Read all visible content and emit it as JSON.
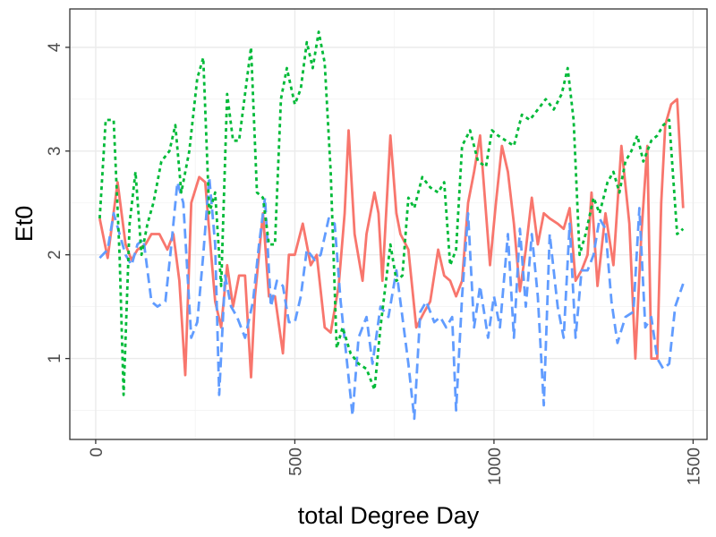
{
  "chart_data": {
    "type": "line",
    "xlabel": "total Degree Day",
    "ylabel": "Et0",
    "xlim": [
      -65,
      1535
    ],
    "ylim": [
      0.22,
      4.37
    ],
    "x_ticks": [
      0,
      500,
      1000,
      1500
    ],
    "x_tick_labels": [
      "0",
      "500",
      "1000",
      "1500"
    ],
    "y_ticks": [
      1,
      2,
      3,
      4
    ],
    "y_tick_labels": [
      "1",
      "2",
      "3",
      "4"
    ],
    "grid": true,
    "legend": "none",
    "series": [
      {
        "color": "#F8766D",
        "dash": "solid",
        "points": [
          [
            10,
            2.35
          ],
          [
            30,
            1.97
          ],
          [
            55,
            2.7
          ],
          [
            75,
            2.1
          ],
          [
            90,
            1.95
          ],
          [
            105,
            2.05
          ],
          [
            125,
            2.1
          ],
          [
            140,
            2.2
          ],
          [
            160,
            2.2
          ],
          [
            180,
            2.05
          ],
          [
            195,
            2.2
          ],
          [
            210,
            1.75
          ],
          [
            225,
            0.84
          ],
          [
            240,
            2.5
          ],
          [
            260,
            2.75
          ],
          [
            275,
            2.7
          ],
          [
            290,
            2.0
          ],
          [
            300,
            1.55
          ],
          [
            315,
            1.3
          ],
          [
            330,
            1.9
          ],
          [
            345,
            1.5
          ],
          [
            360,
            1.8
          ],
          [
            375,
            1.8
          ],
          [
            390,
            0.82
          ],
          [
            400,
            1.6
          ],
          [
            420,
            2.4
          ],
          [
            435,
            1.6
          ],
          [
            450,
            1.6
          ],
          [
            470,
            1.05
          ],
          [
            485,
            2.0
          ],
          [
            500,
            2.0
          ],
          [
            520,
            2.3
          ],
          [
            540,
            1.9
          ],
          [
            555,
            2.0
          ],
          [
            575,
            1.3
          ],
          [
            590,
            1.25
          ],
          [
            610,
            1.7
          ],
          [
            625,
            2.4
          ],
          [
            635,
            3.2
          ],
          [
            650,
            2.2
          ],
          [
            670,
            1.75
          ],
          [
            680,
            2.2
          ],
          [
            700,
            2.6
          ],
          [
            710,
            2.4
          ],
          [
            720,
            1.75
          ],
          [
            740,
            3.15
          ],
          [
            755,
            2.4
          ],
          [
            765,
            2.2
          ],
          [
            785,
            2.05
          ],
          [
            805,
            1.3
          ],
          [
            825,
            1.45
          ],
          [
            840,
            1.55
          ],
          [
            860,
            2.05
          ],
          [
            875,
            1.8
          ],
          [
            890,
            1.75
          ],
          [
            905,
            1.6
          ],
          [
            920,
            1.75
          ],
          [
            935,
            2.5
          ],
          [
            950,
            2.8
          ],
          [
            965,
            3.15
          ],
          [
            990,
            1.9
          ],
          [
            1005,
            2.5
          ],
          [
            1020,
            3.05
          ],
          [
            1035,
            2.8
          ],
          [
            1050,
            2.3
          ],
          [
            1065,
            1.65
          ],
          [
            1080,
            2.05
          ],
          [
            1095,
            2.55
          ],
          [
            1110,
            2.1
          ],
          [
            1125,
            2.4
          ],
          [
            1140,
            2.35
          ],
          [
            1160,
            2.3
          ],
          [
            1175,
            2.25
          ],
          [
            1190,
            2.45
          ],
          [
            1205,
            1.75
          ],
          [
            1220,
            1.85
          ],
          [
            1235,
            2.0
          ],
          [
            1245,
            2.6
          ],
          [
            1260,
            1.7
          ],
          [
            1280,
            2.4
          ],
          [
            1300,
            1.9
          ],
          [
            1320,
            3.05
          ],
          [
            1340,
            2.3
          ],
          [
            1355,
            1.0
          ],
          [
            1370,
            2.2
          ],
          [
            1385,
            3.05
          ],
          [
            1395,
            1.0
          ],
          [
            1410,
            1.0
          ],
          [
            1420,
            2.5
          ],
          [
            1430,
            3.25
          ],
          [
            1445,
            3.45
          ],
          [
            1460,
            3.5
          ],
          [
            1475,
            2.45
          ]
        ]
      },
      {
        "color": "#619CFF",
        "dash": "dashed",
        "points": [
          [
            10,
            1.97
          ],
          [
            30,
            2.05
          ],
          [
            45,
            2.4
          ],
          [
            60,
            2.2
          ],
          [
            75,
            2.0
          ],
          [
            90,
            1.9
          ],
          [
            105,
            2.1
          ],
          [
            120,
            2.15
          ],
          [
            140,
            1.55
          ],
          [
            155,
            1.5
          ],
          [
            175,
            1.55
          ],
          [
            190,
            2.1
          ],
          [
            205,
            2.7
          ],
          [
            220,
            2.5
          ],
          [
            240,
            1.2
          ],
          [
            255,
            1.35
          ],
          [
            270,
            2.0
          ],
          [
            285,
            2.75
          ],
          [
            300,
            2.1
          ],
          [
            310,
            0.65
          ],
          [
            325,
            1.8
          ],
          [
            340,
            1.5
          ],
          [
            355,
            1.4
          ],
          [
            375,
            1.2
          ],
          [
            395,
            1.55
          ],
          [
            410,
            2.1
          ],
          [
            425,
            2.55
          ],
          [
            440,
            1.5
          ],
          [
            455,
            1.75
          ],
          [
            470,
            1.7
          ],
          [
            485,
            1.35
          ],
          [
            500,
            1.35
          ],
          [
            515,
            1.6
          ],
          [
            530,
            2.05
          ],
          [
            550,
            1.95
          ],
          [
            565,
            2.0
          ],
          [
            585,
            2.35
          ],
          [
            600,
            2.3
          ],
          [
            615,
            1.55
          ],
          [
            630,
            1.0
          ],
          [
            645,
            0.45
          ],
          [
            660,
            1.2
          ],
          [
            680,
            1.4
          ],
          [
            695,
            0.95
          ],
          [
            715,
            1.5
          ],
          [
            735,
            1.4
          ],
          [
            755,
            1.85
          ],
          [
            770,
            1.4
          ],
          [
            785,
            0.95
          ],
          [
            800,
            0.42
          ],
          [
            815,
            1.45
          ],
          [
            830,
            1.55
          ],
          [
            850,
            1.35
          ],
          [
            865,
            1.4
          ],
          [
            880,
            1.3
          ],
          [
            895,
            1.4
          ],
          [
            905,
            0.5
          ],
          [
            920,
            1.6
          ],
          [
            935,
            2.4
          ],
          [
            950,
            1.3
          ],
          [
            965,
            1.7
          ],
          [
            985,
            1.2
          ],
          [
            1000,
            1.6
          ],
          [
            1015,
            1.3
          ],
          [
            1035,
            2.2
          ],
          [
            1050,
            1.2
          ],
          [
            1065,
            2.25
          ],
          [
            1080,
            1.5
          ],
          [
            1095,
            2.2
          ],
          [
            1110,
            1.6
          ],
          [
            1125,
            0.55
          ],
          [
            1140,
            2.2
          ],
          [
            1160,
            1.5
          ],
          [
            1175,
            1.2
          ],
          [
            1190,
            2.3
          ],
          [
            1205,
            1.2
          ],
          [
            1220,
            1.85
          ],
          [
            1235,
            1.85
          ],
          [
            1250,
            2.0
          ],
          [
            1265,
            2.35
          ],
          [
            1280,
            2.25
          ],
          [
            1295,
            1.55
          ],
          [
            1310,
            1.15
          ],
          [
            1330,
            1.4
          ],
          [
            1350,
            1.45
          ],
          [
            1365,
            2.45
          ],
          [
            1380,
            1.3
          ],
          [
            1395,
            1.4
          ],
          [
            1410,
            1.0
          ],
          [
            1425,
            0.9
          ],
          [
            1440,
            0.95
          ],
          [
            1455,
            1.5
          ],
          [
            1475,
            1.72
          ]
        ]
      },
      {
        "color": "#00BA38",
        "dash": "dotted",
        "points": [
          [
            10,
            2.35
          ],
          [
            25,
            3.3
          ],
          [
            45,
            3.3
          ],
          [
            60,
            2.0
          ],
          [
            70,
            0.65
          ],
          [
            85,
            2.3
          ],
          [
            100,
            2.8
          ],
          [
            115,
            2.0
          ],
          [
            130,
            2.3
          ],
          [
            145,
            2.5
          ],
          [
            165,
            2.9
          ],
          [
            185,
            3.0
          ],
          [
            200,
            3.25
          ],
          [
            215,
            2.6
          ],
          [
            235,
            3.0
          ],
          [
            255,
            3.7
          ],
          [
            270,
            3.9
          ],
          [
            285,
            2.4
          ],
          [
            300,
            2.6
          ],
          [
            315,
            1.7
          ],
          [
            330,
            3.55
          ],
          [
            345,
            3.1
          ],
          [
            360,
            3.1
          ],
          [
            375,
            3.55
          ],
          [
            390,
            4.0
          ],
          [
            405,
            2.6
          ],
          [
            420,
            2.55
          ],
          [
            435,
            2.1
          ],
          [
            450,
            2.1
          ],
          [
            465,
            3.5
          ],
          [
            480,
            3.8
          ],
          [
            500,
            3.45
          ],
          [
            515,
            3.6
          ],
          [
            530,
            4.05
          ],
          [
            545,
            3.8
          ],
          [
            560,
            4.15
          ],
          [
            575,
            3.85
          ],
          [
            590,
            2.8
          ],
          [
            605,
            1.1
          ],
          [
            620,
            1.3
          ],
          [
            640,
            1.05
          ],
          [
            660,
            0.95
          ],
          [
            680,
            0.9
          ],
          [
            700,
            0.7
          ],
          [
            715,
            1.3
          ],
          [
            740,
            2.1
          ],
          [
            755,
            1.75
          ],
          [
            770,
            1.8
          ],
          [
            785,
            2.55
          ],
          [
            800,
            2.45
          ],
          [
            820,
            2.75
          ],
          [
            840,
            2.65
          ],
          [
            860,
            2.6
          ],
          [
            875,
            2.7
          ],
          [
            890,
            1.9
          ],
          [
            905,
            2.05
          ],
          [
            920,
            3.05
          ],
          [
            940,
            3.2
          ],
          [
            960,
            2.9
          ],
          [
            980,
            2.85
          ],
          [
            995,
            3.2
          ],
          [
            1010,
            3.15
          ],
          [
            1030,
            3.1
          ],
          [
            1050,
            3.05
          ],
          [
            1070,
            3.35
          ],
          [
            1090,
            3.3
          ],
          [
            1110,
            3.4
          ],
          [
            1130,
            3.5
          ],
          [
            1150,
            3.4
          ],
          [
            1170,
            3.55
          ],
          [
            1185,
            3.8
          ],
          [
            1200,
            3.3
          ],
          [
            1215,
            2.0
          ],
          [
            1230,
            2.2
          ],
          [
            1250,
            2.55
          ],
          [
            1265,
            2.4
          ],
          [
            1285,
            2.7
          ],
          [
            1300,
            2.8
          ],
          [
            1315,
            2.6
          ],
          [
            1330,
            2.9
          ],
          [
            1345,
            3.0
          ],
          [
            1360,
            3.15
          ],
          [
            1375,
            2.9
          ],
          [
            1395,
            3.1
          ],
          [
            1410,
            3.15
          ],
          [
            1425,
            3.25
          ],
          [
            1440,
            3.3
          ],
          [
            1460,
            2.2
          ],
          [
            1475,
            2.25
          ]
        ]
      }
    ]
  }
}
